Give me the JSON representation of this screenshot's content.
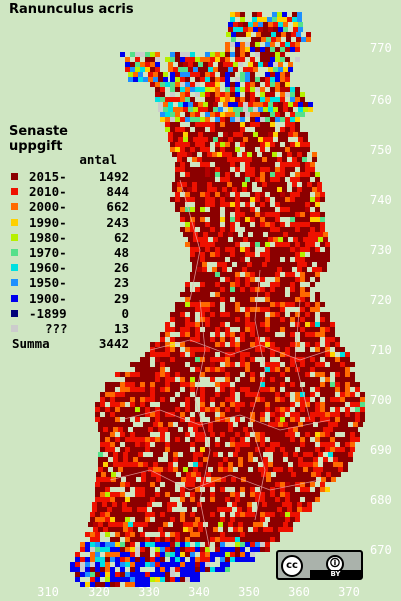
{
  "title": "Ranunculus acris",
  "legend": {
    "heading_line1": "Senaste",
    "heading_line2": "uppgift",
    "count_header": "antal",
    "rows": [
      {
        "label": "2015-",
        "count": "1492",
        "color": "#8b0000"
      },
      {
        "label": "2010-",
        "count": "844",
        "color": "#ee1100"
      },
      {
        "label": "2000-",
        "count": "662",
        "color": "#ff6a00"
      },
      {
        "label": "1990-",
        "count": "243",
        "color": "#ffd000"
      },
      {
        "label": "1980-",
        "count": "62",
        "color": "#b6f000"
      },
      {
        "label": "1970-",
        "count": "48",
        "color": "#55e08a"
      },
      {
        "label": "1960-",
        "count": "26",
        "color": "#00e0e0"
      },
      {
        "label": "1950-",
        "count": "23",
        "color": "#1e90ff"
      },
      {
        "label": "1900-",
        "count": "29",
        "color": "#0000ee"
      },
      {
        "label": "-1899",
        "count": "0",
        "color": "#00007a"
      },
      {
        "label": "???",
        "count": "13",
        "color": "#cccccc"
      }
    ],
    "total_label": "Summa",
    "total_count": "3442"
  },
  "y_axis_labels": [
    "770",
    "760",
    "750",
    "740",
    "730",
    "720",
    "710",
    "700",
    "690",
    "680",
    "670"
  ],
  "x_axis_labels": [
    "310",
    "320",
    "330",
    "340",
    "350",
    "360",
    "370"
  ],
  "license": {
    "cc": "cc",
    "by": "BY"
  },
  "background_color": "#cfe6c2",
  "axis_label_color": "#ffffff"
}
